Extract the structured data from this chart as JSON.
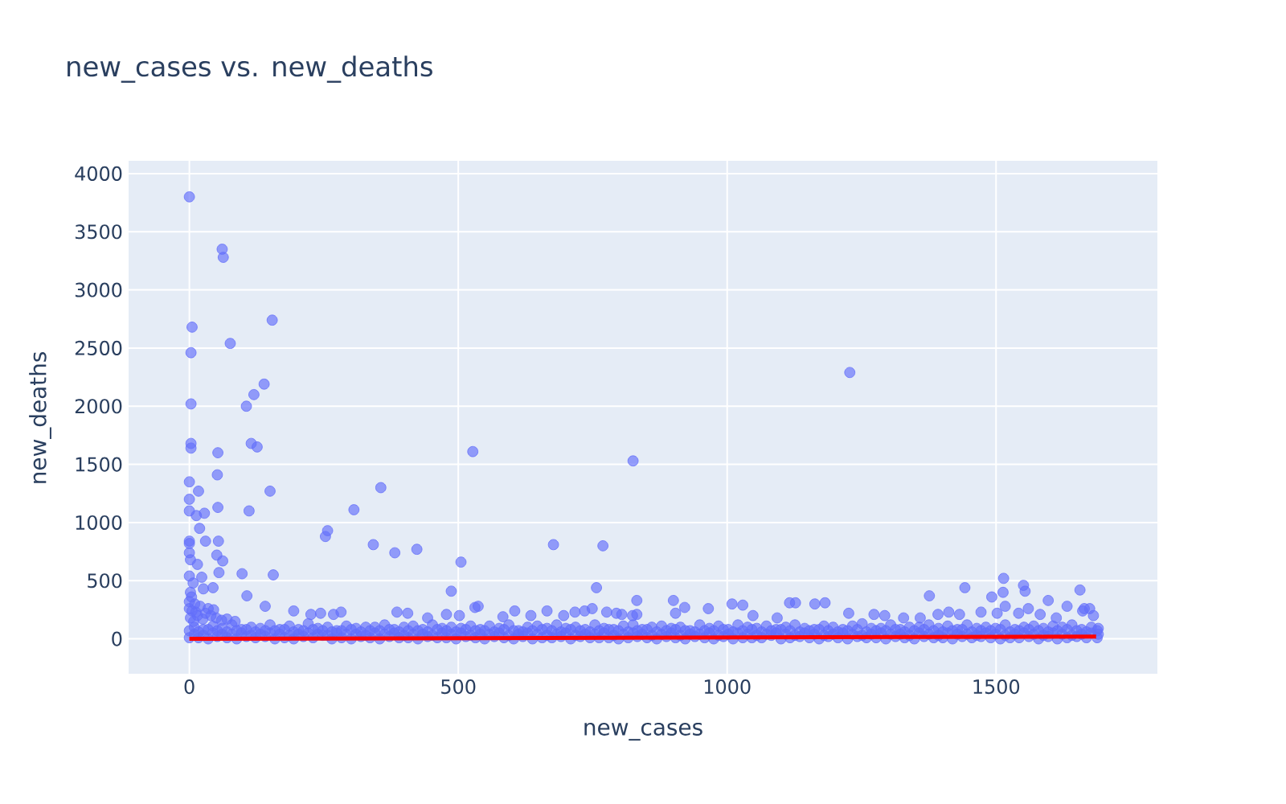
{
  "chart_data": {
    "type": "scatter",
    "title": "new_cases vs. new_deaths",
    "xlabel": "new_cases",
    "ylabel": "new_deaths",
    "xlim": [
      -113,
      1800
    ],
    "ylim": [
      -300,
      4110
    ],
    "xticks": [
      0,
      500,
      1000,
      1500
    ],
    "yticks": [
      0,
      500,
      1000,
      1500,
      2000,
      2500,
      3000,
      3500,
      4000
    ],
    "grid": true,
    "marker": "circle",
    "series": [
      {
        "color": "#636efa",
        "x": [
          0,
          17,
          35,
          52,
          70,
          88,
          106,
          123,
          141,
          159,
          177,
          194,
          212,
          230,
          248,
          265,
          283,
          301,
          319,
          336,
          354,
          372,
          390,
          407,
          425,
          443,
          461,
          478,
          496,
          514,
          532,
          549,
          567,
          585,
          603,
          620,
          638,
          656,
          674,
          691,
          709,
          727,
          745,
          762,
          780,
          798,
          816,
          833,
          851,
          869,
          887,
          904,
          922,
          940,
          958,
          975,
          993,
          1011,
          1029,
          1046,
          1064,
          1082,
          1100,
          1117,
          1135,
          1153,
          1171,
          1188,
          1206,
          1224,
          1242,
          1259,
          1277,
          1295,
          1313,
          1330,
          1348,
          1366,
          1384,
          1401,
          1419,
          1437,
          1455,
          1472,
          1490,
          1508,
          1526,
          1543,
          1561,
          1579,
          1597,
          1614,
          1632,
          1650,
          1668,
          1688,
          9,
          26,
          44,
          61,
          79,
          97,
          115,
          132,
          150,
          168,
          186,
          203,
          221,
          239,
          257,
          274,
          292,
          310,
          328,
          345,
          363,
          381,
          399,
          416,
          434,
          452,
          470,
          487,
          505,
          523,
          541,
          558,
          576,
          594,
          612,
          629,
          647,
          665,
          683,
          700,
          718,
          736,
          754,
          771,
          789,
          807,
          825,
          842,
          860,
          878,
          896,
          913,
          931,
          949,
          967,
          984,
          1002,
          1020,
          1038,
          1055,
          1073,
          1091,
          1109,
          1126,
          1144,
          1162,
          1180,
          1197,
          1215,
          1233,
          1251,
          1268,
          1286,
          1304,
          1322,
          1339,
          1357,
          1375,
          1393,
          1410,
          1428,
          1446,
          1464,
          1481,
          1499,
          1517,
          1535,
          1552,
          1570,
          1588,
          1606,
          1623,
          1641,
          1659,
          1677,
          1690,
          9,
          26,
          44,
          61,
          79,
          97,
          115,
          132,
          150,
          168,
          186,
          203,
          221,
          239,
          257,
          274,
          292,
          310,
          328,
          345,
          363,
          381,
          399,
          416,
          434,
          452,
          470,
          487,
          505,
          523,
          541,
          558,
          576,
          594,
          612,
          629,
          647,
          665,
          683,
          700,
          718,
          736,
          754,
          771,
          789,
          807,
          825,
          842,
          860,
          878,
          896,
          913,
          931,
          949,
          967,
          984,
          1002,
          1020,
          1038,
          1055,
          1073,
          1091,
          1109,
          1126,
          1144,
          1162,
          1180,
          1197,
          1215,
          1233,
          1251,
          1268,
          1286,
          1304,
          1322,
          1339,
          1357,
          1375,
          1393,
          1410,
          1428,
          1446,
          1464,
          1481,
          1499,
          1517,
          1535,
          1552,
          1570,
          1588,
          1606,
          1623,
          1641,
          1659,
          1677,
          1690,
          0,
          17,
          35,
          52,
          70,
          88,
          106,
          123,
          141,
          159,
          177,
          194,
          212,
          230,
          248,
          265,
          283,
          301,
          319,
          336,
          354,
          372,
          390,
          407,
          425,
          443,
          461,
          478,
          496,
          514,
          532,
          549,
          567,
          585,
          603,
          620,
          638,
          656,
          674,
          691,
          709,
          727,
          745,
          762,
          780,
          798,
          816,
          833,
          851,
          869,
          887,
          904,
          922,
          940,
          958,
          975,
          993,
          1011,
          1029,
          1046,
          1064,
          1082,
          1100,
          1117,
          1135,
          1153,
          1171,
          1188,
          1206,
          1224,
          1242,
          1259,
          1277,
          1295,
          1313,
          1330,
          1348,
          1366,
          1384,
          1401,
          1419,
          1437,
          1455,
          1472,
          1490,
          1508,
          1526,
          1543,
          1561,
          1579,
          1597,
          1614,
          1632,
          1650,
          1668,
          1688,
          2,
          5,
          10,
          0,
          15,
          20,
          30,
          40,
          50,
          60,
          8,
          25,
          35,
          0,
          12,
          45,
          70,
          85,
          194,
          226,
          244,
          268,
          282,
          386,
          406,
          443,
          478,
          502,
          531,
          537,
          583,
          605,
          635,
          665,
          696,
          717,
          735,
          749,
          776,
          804,
          832,
          794,
          824,
          904,
          1048,
          1093,
          1226,
          1273,
          1293,
          1328,
          1359,
          1392,
          1412,
          1432,
          1472,
          1502,
          1517,
          1542,
          1582,
          1612,
          1661,
          1681,
          0,
          61,
          63,
          5,
          3,
          154,
          76,
          3,
          106,
          120,
          139,
          3,
          3,
          115,
          126,
          53,
          52,
          150,
          0,
          0,
          17,
          0,
          13,
          28,
          53,
          111,
          19,
          306,
          356,
          527,
          253,
          257,
          0,
          30,
          54,
          382,
          342,
          423,
          505,
          677,
          769,
          98,
          156,
          107,
          141,
          487,
          757,
          832,
          62,
          51,
          55,
          23,
          15,
          2,
          0,
          26,
          44,
          1228,
          825,
          1376,
          1442,
          1514,
          1551,
          1554,
          1513,
          1492,
          1656,
          1597,
          1632,
          900,
          921,
          965,
          1009,
          1029,
          1116,
          1127,
          1163,
          1182,
          1560,
          1664,
          1674,
          0,
          2,
          4,
          0,
          7
        ],
        "values": [
          10,
          10,
          0,
          20,
          10,
          0,
          20,
          10,
          20,
          0,
          10,
          0,
          20,
          10,
          30,
          0,
          10,
          0,
          20,
          10,
          0,
          20,
          10,
          10,
          0,
          20,
          10,
          10,
          0,
          20,
          10,
          0,
          20,
          10,
          0,
          20,
          0,
          10,
          10,
          20,
          0,
          20,
          10,
          10,
          10,
          0,
          10,
          20,
          10,
          0,
          20,
          10,
          0,
          20,
          10,
          0,
          20,
          0,
          10,
          10,
          10,
          30,
          0,
          10,
          20,
          10,
          0,
          20,
          10,
          0,
          20,
          10,
          10,
          0,
          20,
          10,
          0,
          20,
          10,
          10,
          0,
          20,
          10,
          20,
          10,
          0,
          10,
          10,
          20,
          0,
          20,
          0,
          10,
          20,
          10,
          10,
          100,
          80,
          110,
          90,
          120,
          80,
          100,
          90,
          120,
          80,
          110,
          80,
          130,
          90,
          100,
          70,
          110,
          90,
          100,
          100,
          120,
          80,
          100,
          110,
          80,
          120,
          90,
          100,
          90,
          110,
          80,
          110,
          90,
          120,
          70,
          100,
          110,
          90,
          120,
          90,
          100,
          80,
          120,
          90,
          80,
          110,
          120,
          80,
          100,
          110,
          90,
          100,
          70,
          120,
          90,
          110,
          80,
          120,
          100,
          90,
          110,
          80,
          100,
          120,
          90,
          80,
          110,
          100,
          80,
          110,
          130,
          90,
          90,
          120,
          80,
          100,
          100,
          120,
          90,
          110,
          80,
          120,
          90,
          100,
          90,
          120,
          80,
          100,
          110,
          90,
          110,
          100,
          120,
          80,
          100,
          90,
          40,
          30,
          50,
          40,
          40,
          50,
          30,
          40,
          50,
          40,
          30,
          40,
          50,
          40,
          30,
          50,
          40,
          40,
          30,
          50,
          40,
          50,
          30,
          40,
          40,
          30,
          50,
          40,
          50,
          30,
          40,
          40,
          50,
          30,
          40,
          50,
          40,
          30,
          40,
          50,
          30,
          40,
          40,
          50,
          30,
          40,
          50,
          40,
          30,
          40,
          50,
          30,
          40,
          40,
          50,
          30,
          40,
          50,
          40,
          30,
          40,
          50,
          40,
          30,
          50,
          40,
          30,
          40,
          50,
          40,
          30,
          40,
          50,
          40,
          40,
          30,
          50,
          40,
          30,
          50,
          40,
          40,
          30,
          50,
          40,
          30,
          40,
          50,
          40,
          30,
          50,
          40,
          30,
          40,
          50,
          40,
          70,
          60,
          80,
          70,
          60,
          70,
          80,
          60,
          70,
          70,
          80,
          60,
          70,
          80,
          70,
          60,
          70,
          80,
          60,
          70,
          70,
          80,
          60,
          70,
          70,
          60,
          80,
          70,
          60,
          80,
          70,
          70,
          60,
          80,
          70,
          60,
          70,
          80,
          70,
          60,
          80,
          70,
          60,
          70,
          80,
          70,
          60,
          70,
          80,
          60,
          70,
          80,
          70,
          60,
          70,
          70,
          80,
          60,
          70,
          80,
          60,
          70,
          80,
          70,
          60,
          70,
          80,
          70,
          60,
          70,
          80,
          60,
          70,
          70,
          80,
          60,
          70,
          80,
          70,
          60,
          70,
          80,
          60,
          70,
          70,
          80,
          60,
          70,
          80,
          70,
          60,
          70,
          80,
          70,
          60,
          70,
          180,
          240,
          300,
          260,
          200,
          280,
          220,
          200,
          180,
          160,
          150,
          170,
          260,
          320,
          230,
          250,
          170,
          150,
          240,
          210,
          220,
          210,
          230,
          230,
          220,
          180,
          210,
          200,
          270,
          280,
          190,
          240,
          200,
          240,
          200,
          230,
          240,
          260,
          230,
          210,
          210,
          220,
          200,
          220,
          200,
          180,
          220,
          210,
          200,
          180,
          180,
          210,
          230,
          210,
          230,
          220,
          280,
          220,
          210,
          180,
          240,
          200,
          3800,
          3350,
          3280,
          2680,
          2460,
          2740,
          2540,
          2020,
          2000,
          2100,
          2190,
          1680,
          1640,
          1680,
          1650,
          1600,
          1410,
          1270,
          1350,
          1200,
          1270,
          1100,
          1060,
          1080,
          1130,
          1100,
          950,
          1110,
          1300,
          1610,
          880,
          930,
          840,
          840,
          840,
          740,
          810,
          770,
          660,
          810,
          800,
          560,
          550,
          370,
          280,
          410,
          440,
          330,
          670,
          720,
          570,
          530,
          640,
          680,
          740,
          430,
          440,
          2290,
          1530,
          370,
          440,
          520,
          460,
          410,
          400,
          360,
          420,
          330,
          280,
          330,
          270,
          260,
          300,
          290,
          310,
          310,
          300,
          310,
          260,
          260,
          260,
          540,
          400,
          360,
          820,
          480
        ]
      },
      {
        "type": "line",
        "color": "#ff0000",
        "marker": "none",
        "x": [
          0,
          1686
        ],
        "values": [
          0,
          20
        ]
      }
    ]
  }
}
